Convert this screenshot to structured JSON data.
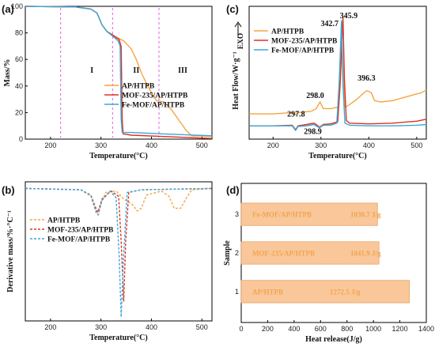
{
  "colors": {
    "ap": "#f5a442",
    "mof235": "#e0301e",
    "femof": "#3aa7d8",
    "bar_fill": "#f9c79a",
    "bar_edge": "#e9a36a",
    "region_line": "#e060e0"
  },
  "chart_data": [
    {
      "id": "a",
      "panel_label": "(a)",
      "type": "line",
      "xlabel": "Temperature(°C)",
      "ylabel": "Mass/%",
      "xlim": [
        150,
        520
      ],
      "ylim": [
        0,
        100
      ],
      "xticks": [
        200,
        300,
        400,
        500
      ],
      "yticks": [
        0,
        20,
        40,
        60,
        80,
        100
      ],
      "regions": {
        "lines": [
          220,
          323,
          415
        ],
        "labels": [
          {
            "text": "I",
            "x": 282,
            "y": 50
          },
          {
            "text": "II",
            "x": 370,
            "y": 50
          },
          {
            "text": "III",
            "x": 462,
            "y": 50
          }
        ]
      },
      "legend": {
        "position": "bottom-right",
        "entries": [
          "AP/HTPB",
          "MOF-235/AP/HTPB",
          "Fe-MOF/AP/HTPB"
        ]
      },
      "series": [
        {
          "name": "AP/HTPB",
          "color_key": "ap",
          "points": [
            [
              150,
              100
            ],
            [
              250,
              99.5
            ],
            [
              280,
              98
            ],
            [
              292,
              95
            ],
            [
              302,
              86
            ],
            [
              312,
              81
            ],
            [
              325,
              78
            ],
            [
              345,
              74
            ],
            [
              360,
              68
            ],
            [
              370,
              60
            ],
            [
              380,
              50
            ],
            [
              390,
              42
            ],
            [
              400,
              35
            ],
            [
              410,
              29
            ],
            [
              425,
              28
            ],
            [
              440,
              22
            ],
            [
              455,
              14
            ],
            [
              470,
              6
            ],
            [
              480,
              2.5
            ],
            [
              520,
              2
            ]
          ]
        },
        {
          "name": "MOF-235/AP/HTPB",
          "color_key": "mof235",
          "points": [
            [
              150,
              100
            ],
            [
              250,
              99.5
            ],
            [
              280,
              98
            ],
            [
              292,
              95
            ],
            [
              302,
              86
            ],
            [
              312,
              81
            ],
            [
              325,
              78
            ],
            [
              336,
              75
            ],
            [
              340,
              70
            ],
            [
              342,
              15
            ],
            [
              344,
              4
            ],
            [
              360,
              3
            ],
            [
              420,
              2
            ],
            [
              520,
              0.5
            ]
          ]
        },
        {
          "name": "Fe-MOF/AP/HTPB",
          "color_key": "femof",
          "points": [
            [
              150,
              100
            ],
            [
              250,
              99.5
            ],
            [
              280,
              98
            ],
            [
              292,
              95
            ],
            [
              302,
              86
            ],
            [
              312,
              81
            ],
            [
              325,
              77
            ],
            [
              334,
              74
            ],
            [
              338,
              70
            ],
            [
              340,
              15
            ],
            [
              342,
              5
            ],
            [
              360,
              5
            ],
            [
              420,
              4
            ],
            [
              520,
              2.5
            ]
          ]
        }
      ]
    },
    {
      "id": "b",
      "panel_label": "(b)",
      "type": "line",
      "xlabel": "Temperature(°C)",
      "ylabel": "Derivative mass/%·°C⁻¹",
      "xlim": [
        150,
        520
      ],
      "ylim": [
        -100,
        5
      ],
      "xticks": [
        200,
        300,
        400,
        500
      ],
      "yticks": [],
      "legend": {
        "position": "center-left",
        "entries": [
          "AP/HTPB",
          "MOF-235/AP/HTPB",
          "Fe-MOF/AP/HTPB"
        ]
      },
      "series": [
        {
          "name": "AP/HTPB",
          "color_key": "ap",
          "dashed": true,
          "points": [
            [
              150,
              0
            ],
            [
              260,
              -1
            ],
            [
              280,
              -6
            ],
            [
              290,
              -18
            ],
            [
              295,
              -20
            ],
            [
              302,
              -9
            ],
            [
              310,
              -3
            ],
            [
              330,
              -2
            ],
            [
              345,
              -8
            ],
            [
              362,
              -12
            ],
            [
              372,
              -17
            ],
            [
              380,
              -15
            ],
            [
              390,
              -5
            ],
            [
              420,
              -2
            ],
            [
              435,
              -6
            ],
            [
              445,
              -15
            ],
            [
              458,
              -15
            ],
            [
              468,
              -8
            ],
            [
              480,
              -1
            ],
            [
              520,
              0
            ]
          ]
        },
        {
          "name": "MOF-235/AP/HTPB",
          "color_key": "mof235",
          "dashed": true,
          "points": [
            [
              150,
              0
            ],
            [
              260,
              -1
            ],
            [
              280,
              -5
            ],
            [
              290,
              -15
            ],
            [
              294,
              -18
            ],
            [
              302,
              -8
            ],
            [
              320,
              -2
            ],
            [
              335,
              -6
            ],
            [
              340,
              -40
            ],
            [
              345,
              -85
            ],
            [
              349,
              -40
            ],
            [
              355,
              -3
            ],
            [
              380,
              -1
            ],
            [
              520,
              0
            ]
          ]
        },
        {
          "name": "Fe-MOF/AP/HTPB",
          "color_key": "femof",
          "dashed": true,
          "points": [
            [
              150,
              0
            ],
            [
              260,
              -1
            ],
            [
              280,
              -5
            ],
            [
              290,
              -17
            ],
            [
              294,
              -20
            ],
            [
              302,
              -9
            ],
            [
              318,
              -2
            ],
            [
              330,
              -7
            ],
            [
              336,
              -50
            ],
            [
              340,
              -97
            ],
            [
              345,
              -50
            ],
            [
              352,
              -3
            ],
            [
              380,
              -1
            ],
            [
              520,
              0
            ]
          ]
        }
      ]
    },
    {
      "id": "c",
      "panel_label": "(c)",
      "type": "line",
      "xlabel": "Temperature(°C)",
      "ylabel": "Heat Flow/W·g⁻¹",
      "exo_label": "EXO",
      "xlim": [
        150,
        520
      ],
      "ylim": [
        0,
        100
      ],
      "xticks": [
        200,
        300,
        400,
        500
      ],
      "yticks": [],
      "legend": {
        "position": "top-left",
        "entries": [
          "AP/HTPB",
          "MOF-235/AP/HTPB",
          "Fe-MOF/AP/HTPB"
        ]
      },
      "annotations": [
        {
          "text": "342.7",
          "x": 318,
          "y": 85
        },
        {
          "text": "345.9",
          "x": 358,
          "y": 91
        },
        {
          "text": "298.0",
          "x": 288,
          "y": 31
        },
        {
          "text": "396.3",
          "x": 395,
          "y": 44
        },
        {
          "text": "297.8",
          "x": 248,
          "y": 17
        },
        {
          "text": "298.9",
          "x": 283,
          "y": 4
        }
      ],
      "series": [
        {
          "name": "AP/HTPB",
          "color_key": "ap",
          "points": [
            [
              150,
              19
            ],
            [
              200,
              19
            ],
            [
              240,
              20
            ],
            [
              247,
              18.5
            ],
            [
              252,
              20
            ],
            [
              280,
              21
            ],
            [
              290,
              23
            ],
            [
              298,
              28
            ],
            [
              305,
              23
            ],
            [
              320,
              23
            ],
            [
              335,
              24
            ],
            [
              340,
              55
            ],
            [
              342.7,
              86
            ],
            [
              345,
              60
            ],
            [
              350,
              24
            ],
            [
              360,
              26
            ],
            [
              375,
              30
            ],
            [
              390,
              35
            ],
            [
              396,
              36.5
            ],
            [
              405,
              35
            ],
            [
              412,
              29
            ],
            [
              425,
              28
            ],
            [
              450,
              29
            ],
            [
              480,
              32
            ],
            [
              510,
              35
            ],
            [
              520,
              37
            ]
          ]
        },
        {
          "name": "MOF-235/AP/HTPB",
          "color_key": "mof235",
          "points": [
            [
              150,
              10
            ],
            [
              200,
              10
            ],
            [
              240,
              10.5
            ],
            [
              247,
              7
            ],
            [
              252,
              10
            ],
            [
              270,
              11
            ],
            [
              285,
              12
            ],
            [
              290,
              11
            ],
            [
              297,
              9
            ],
            [
              305,
              11
            ],
            [
              320,
              11.5
            ],
            [
              335,
              13
            ],
            [
              340,
              40
            ],
            [
              345.9,
              92
            ],
            [
              349,
              45
            ],
            [
              353,
              14
            ],
            [
              360,
              12
            ],
            [
              400,
              11.5
            ],
            [
              450,
              12
            ],
            [
              500,
              13.5
            ],
            [
              520,
              15
            ]
          ]
        },
        {
          "name": "Fe-MOF/AP/HTPB",
          "color_key": "femof",
          "points": [
            [
              150,
              10
            ],
            [
              200,
              10
            ],
            [
              240,
              10
            ],
            [
              247,
              6.5
            ],
            [
              252,
              9.5
            ],
            [
              270,
              10
            ],
            [
              285,
              11
            ],
            [
              297,
              8.5
            ],
            [
              305,
              10.5
            ],
            [
              320,
              10.5
            ],
            [
              333,
              12
            ],
            [
              338,
              40
            ],
            [
              342.7,
              89
            ],
            [
              346,
              40
            ],
            [
              350,
              12
            ],
            [
              360,
              10.5
            ],
            [
              400,
              10
            ],
            [
              450,
              10
            ],
            [
              500,
              10.5
            ],
            [
              520,
              11
            ]
          ]
        }
      ]
    },
    {
      "id": "d",
      "panel_label": "(d)",
      "type": "bar",
      "orientation": "horizontal",
      "xlabel": "Heat release(J/g)",
      "ylabel": "Sample",
      "xlim": [
        0,
        1400
      ],
      "xticks": [
        0,
        200,
        400,
        600,
        800,
        1000,
        1200,
        1400
      ],
      "categories": [
        "1",
        "2",
        "3"
      ],
      "values": [
        1272.5,
        1041.9,
        1030.7
      ],
      "bar_labels": [
        "AP/HTPB",
        "MOF-235/AP/HTPB",
        "Fe-MOF/AP/HTPB"
      ],
      "value_labels": [
        "1272.5 J/g",
        "1041.9 J/g",
        "1030.7 J/g"
      ]
    }
  ]
}
